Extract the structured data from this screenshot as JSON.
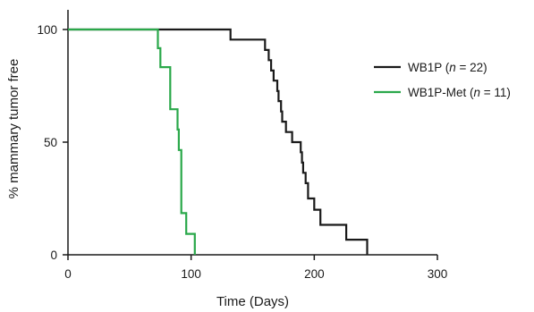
{
  "chart_data": {
    "type": "line",
    "title": "",
    "xlabel": "Time (Days)",
    "ylabel": "% mammary tumor free",
    "xlim": [
      0,
      300
    ],
    "ylim": [
      0,
      100
    ],
    "xticks": [
      0,
      100,
      200,
      300
    ],
    "yticks": [
      0,
      50,
      100
    ],
    "grid": false,
    "legend_position": "right",
    "series": [
      {
        "name": "WB1P (n = 22)",
        "name_prefix": "WB1P (",
        "name_italic": "n",
        "name_suffix": " = 22)",
        "color": "#1a1a1a",
        "step": true,
        "points": [
          [
            0,
            100
          ],
          [
            132,
            100
          ],
          [
            132,
            95.5
          ],
          [
            160,
            95.5
          ],
          [
            160,
            90.9
          ],
          [
            163,
            90.9
          ],
          [
            163,
            86.4
          ],
          [
            165,
            86.4
          ],
          [
            165,
            81.8
          ],
          [
            167,
            81.8
          ],
          [
            167,
            77.3
          ],
          [
            170,
            77.3
          ],
          [
            170,
            72.7
          ],
          [
            171,
            72.7
          ],
          [
            171,
            68.2
          ],
          [
            173,
            68.2
          ],
          [
            173,
            63.6
          ],
          [
            174,
            63.6
          ],
          [
            174,
            59.1
          ],
          [
            177,
            59.1
          ],
          [
            177,
            54.5
          ],
          [
            182,
            54.5
          ],
          [
            182,
            50.0
          ],
          [
            189,
            50.0
          ],
          [
            189,
            45.5
          ],
          [
            190,
            45.5
          ],
          [
            190,
            40.9
          ],
          [
            191,
            40.9
          ],
          [
            191,
            36.4
          ],
          [
            193,
            36.4
          ],
          [
            193,
            31.8
          ],
          [
            195,
            31.8
          ],
          [
            195,
            25.0
          ],
          [
            200,
            25.0
          ],
          [
            200,
            20.0
          ],
          [
            205,
            20.0
          ],
          [
            205,
            13.3
          ],
          [
            226,
            13.3
          ],
          [
            226,
            6.7
          ],
          [
            243,
            6.7
          ],
          [
            243,
            0
          ]
        ]
      },
      {
        "name": "WB1P-Met (n = 11)",
        "name_prefix": "WB1P-Met (",
        "name_italic": "n",
        "name_suffix": " = 11)",
        "color": "#2aa84a",
        "step": true,
        "points": [
          [
            0,
            100
          ],
          [
            73,
            100
          ],
          [
            73,
            91.7
          ],
          [
            75,
            91.7
          ],
          [
            75,
            83.3
          ],
          [
            83,
            83.3
          ],
          [
            83,
            64.6
          ],
          [
            89,
            64.6
          ],
          [
            89,
            55.6
          ],
          [
            90,
            55.6
          ],
          [
            90,
            46.5
          ],
          [
            92,
            46.5
          ],
          [
            92,
            18.5
          ],
          [
            96,
            18.5
          ],
          [
            96,
            9.3
          ],
          [
            103,
            9.3
          ],
          [
            103,
            0
          ]
        ]
      }
    ]
  }
}
